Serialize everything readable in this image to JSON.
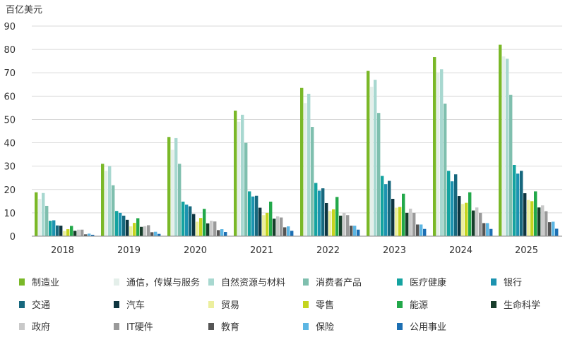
{
  "chart_data": {
    "type": "bar",
    "unit_label": "百亿美元",
    "categories": [
      "2018",
      "2019",
      "2020",
      "2021",
      "2022",
      "2023",
      "2024",
      "2025"
    ],
    "y_ticks": [
      0,
      10,
      20,
      30,
      40,
      50,
      60,
      70,
      80,
      90
    ],
    "ylim": [
      0,
      90
    ],
    "grid": true,
    "legend_position": "bottom",
    "series": [
      {
        "name": "制造业",
        "color": "#7ab828",
        "values": [
          18.8,
          31,
          42.5,
          53.8,
          63.5,
          70.8,
          76.7,
          82
        ]
      },
      {
        "name": "通信，传媒与服务",
        "color": "#e4efea",
        "values": [
          16,
          28,
          37,
          49,
          57,
          64,
          70,
          77
        ]
      },
      {
        "name": "自然资源与材料",
        "color": "#a8d8d0",
        "values": [
          18.5,
          30,
          42,
          52,
          61,
          67,
          71.5,
          76
        ]
      },
      {
        "name": "消费者产品",
        "color": "#7fbfae",
        "values": [
          13,
          21.8,
          31,
          40,
          46.8,
          52.8,
          56.8,
          60.5
        ]
      },
      {
        "name": "医疗健康",
        "color": "#14a3a0",
        "values": [
          6.6,
          10.8,
          14.8,
          19.2,
          22.8,
          25.8,
          28,
          30.5
        ]
      },
      {
        "name": "银行",
        "color": "#1c93b0",
        "values": [
          6.8,
          10,
          13.5,
          17,
          19.5,
          22.3,
          23.5,
          26.8
        ]
      },
      {
        "name": "交通",
        "color": "#17687e",
        "values": [
          4.6,
          8.8,
          12.8,
          17.3,
          20.5,
          23.7,
          26.5,
          28
        ]
      },
      {
        "name": "汽车",
        "color": "#0e3540",
        "values": [
          4.5,
          7,
          9.5,
          12.2,
          14.2,
          16,
          17.2,
          18.4
        ]
      },
      {
        "name": "贸易",
        "color": "#ecef9e",
        "values": [
          2.2,
          4.2,
          6.2,
          9,
          10.8,
          12.2,
          13.8,
          15.5
        ]
      },
      {
        "name": "零售",
        "color": "#c4d41e",
        "values": [
          3,
          5.7,
          7.8,
          10,
          11.5,
          12.5,
          14.3,
          15
        ]
      },
      {
        "name": "能源",
        "color": "#22a84a",
        "values": [
          4.4,
          7.7,
          11.7,
          14.8,
          16.8,
          18.2,
          18.8,
          19.2
        ]
      },
      {
        "name": "生命科学",
        "color": "#173d2b",
        "values": [
          2.3,
          4,
          5.5,
          7.5,
          8.8,
          10,
          11,
          12.3
        ]
      },
      {
        "name": "政府",
        "color": "#c9c9c9",
        "values": [
          2.8,
          4.3,
          6.6,
          8.5,
          10,
          11.8,
          12.3,
          13.2
        ]
      },
      {
        "name": "IT硬件",
        "color": "#9a9a9a",
        "values": [
          2.8,
          4.7,
          6.3,
          8,
          9,
          10,
          10,
          10.7
        ]
      },
      {
        "name": "教育",
        "color": "#555555",
        "values": [
          0.8,
          1.7,
          2.6,
          3.8,
          4.5,
          5,
          5.6,
          6
        ]
      },
      {
        "name": "保险",
        "color": "#5cb6e3",
        "values": [
          1.1,
          1.9,
          3,
          4.2,
          4.5,
          5,
          5.6,
          6.2
        ]
      },
      {
        "name": "公用事业",
        "color": "#1c6fb3",
        "values": [
          0.6,
          1,
          1.8,
          2.3,
          2.8,
          3.1,
          3.1,
          3.2
        ]
      }
    ]
  }
}
